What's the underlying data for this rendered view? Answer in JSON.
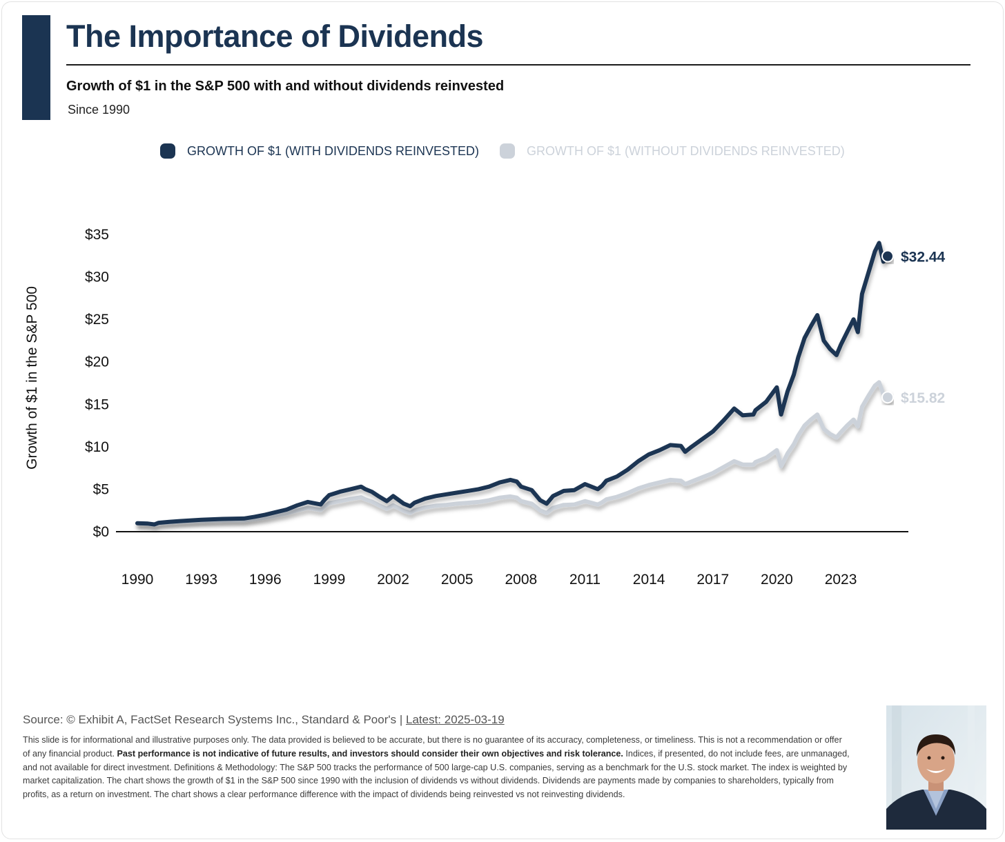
{
  "header": {
    "title": "The Importance of Dividends",
    "subtitle": "Growth of $1 in the S&P 500 with and without dividends reinvested",
    "since": "Since 1990"
  },
  "colors": {
    "accent": "#1b3452",
    "with_div": "#1b3452",
    "without_div": "#ccd2da"
  },
  "legend": [
    {
      "label": "GROWTH OF $1 (WITH DIVIDENDS REINVESTED)",
      "color": "#1b3452"
    },
    {
      "label": "GROWTH OF $1 (WITHOUT DIVIDENDS REINVESTED)",
      "color": "#ccd2da"
    }
  ],
  "chart_data": {
    "type": "line",
    "ylabel": "Growth of $1 in the S&P 500",
    "xlabel": "",
    "xlim": [
      1990,
      2025.2
    ],
    "ylim": [
      0,
      35
    ],
    "x_ticks": [
      1990,
      1993,
      1996,
      1999,
      2002,
      2005,
      2008,
      2011,
      2014,
      2017,
      2020,
      2023
    ],
    "y_ticks": [
      {
        "value": 0,
        "label": "$0"
      },
      {
        "value": 5,
        "label": "$5"
      },
      {
        "value": 10,
        "label": "$10"
      },
      {
        "value": 15,
        "label": "$15"
      },
      {
        "value": 20,
        "label": "$20"
      },
      {
        "value": 25,
        "label": "$25"
      },
      {
        "value": 30,
        "label": "$30"
      },
      {
        "value": 35,
        "label": "$35"
      }
    ],
    "legend_position": "top",
    "grid": false,
    "series": [
      {
        "name": "GROWTH OF $1 (WITH DIVIDENDS REINVESTED)",
        "color": "#1b3452",
        "end_label": "$32.44",
        "end_value": 32.44,
        "x": [
          1990.0,
          1990.5,
          1990.8,
          1991.0,
          1991.5,
          1992.0,
          1993.0,
          1994.0,
          1995.0,
          1995.5,
          1996.0,
          1996.5,
          1997.0,
          1997.5,
          1998.0,
          1998.6,
          1998.8,
          1999.0,
          1999.5,
          2000.0,
          2000.5,
          2000.7,
          2001.0,
          2001.3,
          2001.7,
          2002.0,
          2002.5,
          2002.8,
          2003.0,
          2003.5,
          2004.0,
          2004.5,
          2005.0,
          2005.5,
          2006.0,
          2006.5,
          2007.0,
          2007.5,
          2007.8,
          2008.0,
          2008.5,
          2008.9,
          2009.2,
          2009.5,
          2010.0,
          2010.5,
          2011.0,
          2011.6,
          2011.8,
          2012.0,
          2012.5,
          2013.0,
          2013.5,
          2014.0,
          2014.5,
          2015.0,
          2015.5,
          2015.7,
          2016.0,
          2016.5,
          2017.0,
          2017.5,
          2018.0,
          2018.4,
          2018.9,
          2019.0,
          2019.5,
          2020.0,
          2020.2,
          2020.5,
          2020.8,
          2021.0,
          2021.3,
          2021.6,
          2021.9,
          2022.2,
          2022.5,
          2022.8,
          2023.0,
          2023.3,
          2023.6,
          2023.8,
          2024.0,
          2024.3,
          2024.6,
          2024.8,
          2025.0,
          2025.2
        ],
        "y": [
          1.0,
          0.95,
          0.85,
          1.05,
          1.15,
          1.25,
          1.4,
          1.5,
          1.55,
          1.75,
          2.0,
          2.3,
          2.6,
          3.1,
          3.5,
          3.2,
          3.8,
          4.3,
          4.7,
          5.0,
          5.3,
          5.0,
          4.7,
          4.2,
          3.6,
          4.2,
          3.3,
          3.0,
          3.4,
          3.9,
          4.2,
          4.4,
          4.6,
          4.8,
          5.0,
          5.3,
          5.8,
          6.1,
          5.9,
          5.3,
          4.9,
          3.7,
          3.3,
          4.2,
          4.8,
          4.9,
          5.6,
          5.0,
          5.4,
          6.0,
          6.5,
          7.3,
          8.3,
          9.1,
          9.6,
          10.2,
          10.1,
          9.4,
          10.0,
          10.9,
          11.8,
          13.1,
          14.5,
          13.7,
          13.8,
          14.3,
          15.3,
          17.0,
          13.8,
          16.5,
          18.5,
          20.5,
          22.8,
          24.2,
          25.5,
          22.5,
          21.5,
          20.8,
          22.0,
          23.5,
          25.0,
          23.5,
          28.0,
          30.5,
          33.0,
          34.0,
          31.8,
          32.44
        ]
      },
      {
        "name": "GROWTH OF $1 (WITHOUT DIVIDENDS REINVESTED)",
        "color": "#ccd2da",
        "end_label": "$15.82",
        "end_value": 15.82,
        "x": [
          1990.0,
          1990.5,
          1990.8,
          1991.0,
          1991.5,
          1992.0,
          1993.0,
          1994.0,
          1995.0,
          1995.5,
          1996.0,
          1996.5,
          1997.0,
          1997.5,
          1998.0,
          1998.6,
          1998.8,
          1999.0,
          1999.5,
          2000.0,
          2000.5,
          2000.7,
          2001.0,
          2001.3,
          2001.7,
          2002.0,
          2002.5,
          2002.8,
          2003.0,
          2003.5,
          2004.0,
          2004.5,
          2005.0,
          2005.5,
          2006.0,
          2006.5,
          2007.0,
          2007.5,
          2007.8,
          2008.0,
          2008.5,
          2008.9,
          2009.2,
          2009.5,
          2010.0,
          2010.5,
          2011.0,
          2011.6,
          2011.8,
          2012.0,
          2012.5,
          2013.0,
          2013.5,
          2014.0,
          2014.5,
          2015.0,
          2015.5,
          2015.7,
          2016.0,
          2016.5,
          2017.0,
          2017.5,
          2018.0,
          2018.4,
          2018.9,
          2019.0,
          2019.5,
          2020.0,
          2020.2,
          2020.5,
          2020.8,
          2021.0,
          2021.3,
          2021.6,
          2021.9,
          2022.2,
          2022.5,
          2022.8,
          2023.0,
          2023.3,
          2023.6,
          2023.8,
          2024.0,
          2024.3,
          2024.6,
          2024.8,
          2025.0,
          2025.2
        ],
        "y": [
          1.0,
          0.93,
          0.82,
          1.0,
          1.08,
          1.15,
          1.25,
          1.3,
          1.33,
          1.48,
          1.65,
          1.9,
          2.15,
          2.5,
          2.8,
          2.55,
          3.0,
          3.35,
          3.6,
          3.85,
          4.05,
          3.8,
          3.55,
          3.15,
          2.7,
          3.1,
          2.45,
          2.2,
          2.5,
          2.85,
          3.05,
          3.15,
          3.3,
          3.4,
          3.5,
          3.7,
          4.0,
          4.15,
          4.0,
          3.6,
          3.3,
          2.5,
          2.2,
          2.8,
          3.15,
          3.2,
          3.6,
          3.2,
          3.45,
          3.8,
          4.1,
          4.55,
          5.1,
          5.5,
          5.8,
          6.1,
          6.0,
          5.6,
          5.9,
          6.4,
          6.9,
          7.6,
          8.3,
          7.9,
          7.9,
          8.2,
          8.7,
          9.6,
          7.7,
          9.2,
          10.3,
          11.3,
          12.5,
          13.2,
          13.8,
          12.1,
          11.5,
          11.1,
          11.7,
          12.5,
          13.2,
          12.4,
          14.7,
          16.0,
          17.2,
          17.6,
          16.2,
          15.82
        ]
      }
    ]
  },
  "footer": {
    "source": "Source: © Exhibit A, FactSet Research Systems Inc., Standard & Poor's | ",
    "latest": "Latest: 2025-03-19",
    "disclaimer_part1": "This slide is for informational and illustrative purposes only. The data provided is believed to be accurate, but there is no guarantee of its accuracy, completeness, or timeliness. This is not a recommendation or offer of any financial product. ",
    "disclaimer_bold": "Past performance is not indicative of future results, and investors should consider their own objectives and risk tolerance.",
    "disclaimer_part2": " Indices, if presented, do not include fees, are unmanaged, and not available for direct investment. Definitions & Methodology: The S&P 500 tracks the performance of 500 large-cap U.S. companies, serving as a benchmark for the U.S. stock market. The index is weighted by market capitalization. The chart shows the growth of $1 in the S&P 500 since 1990 with the inclusion of dividends vs without dividends. Dividends are payments made by companies to shareholders, typically from profits, as a return on investment. The chart shows a clear performance difference with the impact of dividends being reinvested vs not reinvesting dividends."
  }
}
